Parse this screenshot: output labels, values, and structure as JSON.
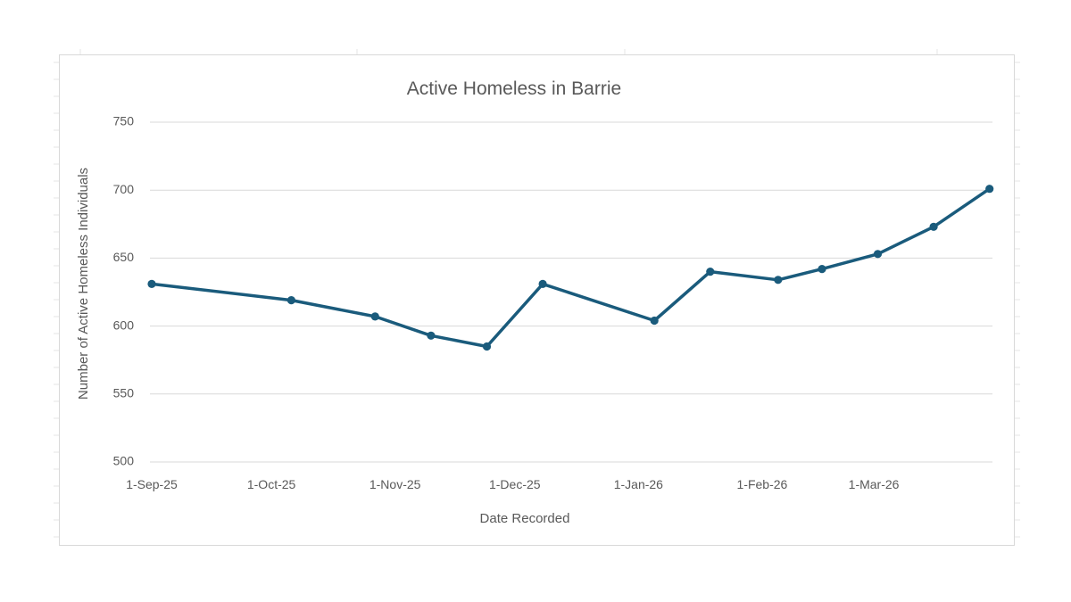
{
  "chart_data": {
    "type": "line",
    "title": "Active Homeless in Barrie",
    "xlabel": "Date Recorded",
    "ylabel": "Number of Active Homeless Individuals",
    "ylim": [
      500,
      750
    ],
    "yticks": [
      500,
      550,
      600,
      650,
      700,
      750
    ],
    "xtick_labels": [
      "1-Sep-25",
      "1-Oct-25",
      "1-Nov-25",
      "1-Dec-25",
      "1-Jan-26",
      "1-Feb-26",
      "1-Mar-26"
    ],
    "xtick_days": [
      0,
      30,
      61,
      91,
      122,
      153,
      181
    ],
    "x_axis_days_range": [
      0,
      210
    ],
    "grid": true,
    "legend": "none",
    "series": [
      {
        "name": "Active Homeless",
        "color": "#1a5b7c",
        "x": [
          "2025-09-01",
          "2025-10-06",
          "2025-10-27",
          "2025-11-10",
          "2025-11-24",
          "2025-12-08",
          "2026-01-05",
          "2026-01-19",
          "2026-02-05",
          "2026-02-16",
          "2026-03-02",
          "2026-03-16",
          "2026-03-30"
        ],
        "x_days": [
          0,
          35,
          56,
          70,
          84,
          98,
          126,
          140,
          157,
          168,
          182,
          196,
          210
        ],
        "values": [
          631,
          619,
          607,
          593,
          585,
          631,
          604,
          640,
          634,
          642,
          653,
          673,
          701
        ]
      }
    ]
  }
}
